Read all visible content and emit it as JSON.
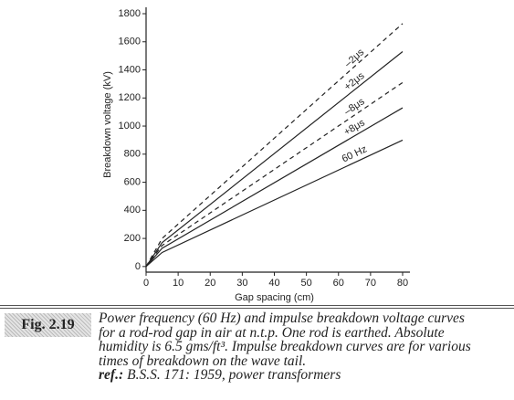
{
  "chart_data": {
    "type": "line",
    "x_label": "Gap spacing (cm)",
    "y_label": "Breakdown voltage (kV)",
    "x": [
      0,
      5,
      80
    ],
    "series": [
      {
        "name": "–2μs",
        "color": "#222",
        "style": "dashed",
        "values": [
          0,
          200,
          1730
        ]
      },
      {
        "name": "+2μs",
        "color": "#222",
        "style": "solid",
        "values": [
          0,
          170,
          1530
        ]
      },
      {
        "name": "–8μs",
        "color": "#222",
        "style": "dashed",
        "values": [
          0,
          150,
          1310
        ]
      },
      {
        "name": "+8μs",
        "color": "#222",
        "style": "solid",
        "values": [
          0,
          130,
          1130
        ]
      },
      {
        "name": "60 Hz",
        "color": "#222",
        "style": "solid",
        "values": [
          0,
          100,
          900
        ]
      }
    ],
    "xlim": [
      0,
      80
    ],
    "ylim": [
      -40,
      1800
    ],
    "xticks": [
      0,
      10,
      20,
      30,
      40,
      50,
      60,
      70,
      80
    ],
    "yticks": [
      0,
      200,
      400,
      600,
      800,
      1000,
      1200,
      1400,
      1600,
      1800
    ]
  },
  "figure_label": "Fig. 2.19",
  "caption": [
    "Power frequency (60 Hz) and impulse breakdown voltage curves",
    "for a rod-rod gap in air at n.t.p. One rod is earthed. Absolute",
    "humidity is 6.5 gms/ft³. Impulse breakdown curves are for various",
    "times of breakdown on the wave tail."
  ],
  "ref_label": "ref.:",
  "ref": "B.S.S. 171: 1959, power transformers"
}
